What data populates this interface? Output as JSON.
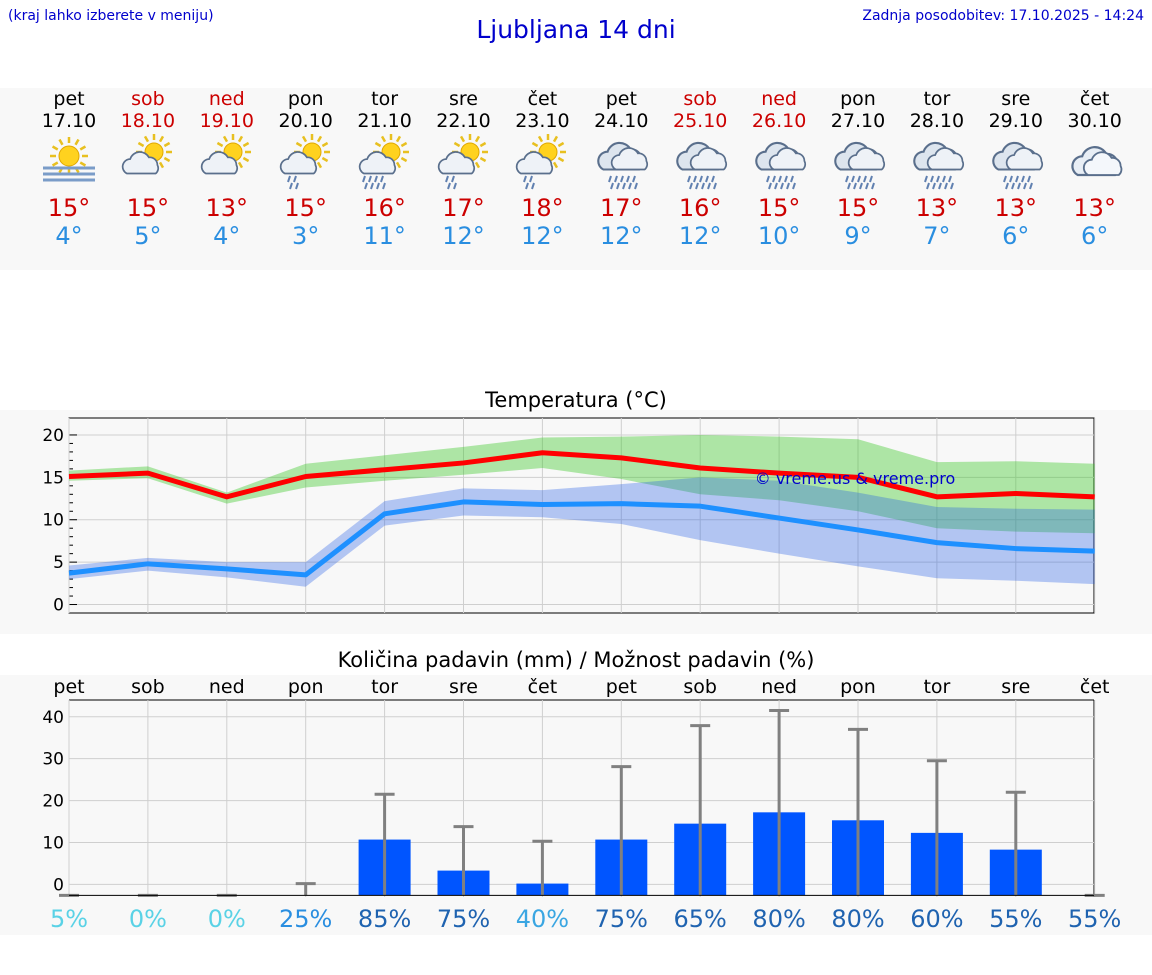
{
  "header": {
    "hint": "(kraj lahko izberete v meniju)",
    "title": "Ljubljana 14 dni",
    "updated": "Zadnja posodobitev: 17.10.2025 - 14:24"
  },
  "colors": {
    "max": "#ff0000",
    "min": "#1e90ff",
    "weekend": "#cc0000",
    "bar": "#0055ff",
    "whisker": "#808080"
  },
  "days": [
    {
      "name": "pet",
      "date": "17.10",
      "weekend": false,
      "icon": "sun-fog-icon",
      "max": "15°",
      "min": "4°"
    },
    {
      "name": "sob",
      "date": "18.10",
      "weekend": true,
      "icon": "sun-cloud-icon",
      "max": "15°",
      "min": "5°"
    },
    {
      "name": "ned",
      "date": "19.10",
      "weekend": true,
      "icon": "sun-cloud-icon",
      "max": "13°",
      "min": "4°"
    },
    {
      "name": "pon",
      "date": "20.10",
      "weekend": false,
      "icon": "sun-cloud-rain-icon",
      "max": "15°",
      "min": "3°"
    },
    {
      "name": "tor",
      "date": "21.10",
      "weekend": false,
      "icon": "sun-cloud-heavy-rain-icon",
      "max": "16°",
      "min": "11°"
    },
    {
      "name": "sre",
      "date": "22.10",
      "weekend": false,
      "icon": "sun-cloud-rain-icon",
      "max": "17°",
      "min": "12°"
    },
    {
      "name": "čet",
      "date": "23.10",
      "weekend": false,
      "icon": "sun-cloud-rain-icon",
      "max": "18°",
      "min": "12°"
    },
    {
      "name": "pet",
      "date": "24.10",
      "weekend": false,
      "icon": "cloud-rain-icon",
      "max": "17°",
      "min": "12°"
    },
    {
      "name": "sob",
      "date": "25.10",
      "weekend": true,
      "icon": "cloud-rain-icon",
      "max": "16°",
      "min": "12°"
    },
    {
      "name": "ned",
      "date": "26.10",
      "weekend": true,
      "icon": "cloud-rain-icon",
      "max": "15°",
      "min": "10°"
    },
    {
      "name": "pon",
      "date": "27.10",
      "weekend": false,
      "icon": "cloud-rain-icon",
      "max": "15°",
      "min": "9°"
    },
    {
      "name": "tor",
      "date": "28.10",
      "weekend": false,
      "icon": "cloud-rain-icon",
      "max": "13°",
      "min": "7°"
    },
    {
      "name": "sre",
      "date": "29.10",
      "weekend": false,
      "icon": "cloud-rain-icon",
      "max": "13°",
      "min": "6°"
    },
    {
      "name": "čet",
      "date": "30.10",
      "weekend": false,
      "icon": "cloud-icon",
      "max": "13°",
      "min": "6°"
    }
  ],
  "chart_data": [
    {
      "type": "line",
      "title": "Temperatura (°C)",
      "watermark": "© vreme.us & vreme.pro",
      "x": [
        "pet",
        "sob",
        "ned",
        "pon",
        "tor",
        "sre",
        "čet",
        "pet",
        "sob",
        "ned",
        "pon",
        "tor",
        "sre",
        "čet"
      ],
      "ylim": [
        -1,
        22
      ],
      "yticks": [
        0,
        5,
        10,
        15,
        20
      ],
      "grid": true,
      "series": [
        {
          "values": [
            15.1,
            15.5,
            12.7,
            15.1,
            15.9,
            16.7,
            17.9,
            17.3,
            16.1,
            15.5,
            15.0,
            12.7,
            13.1,
            12.7
          ],
          "band_low": [
            14.6,
            14.9,
            11.9,
            13.8,
            14.6,
            15.3,
            16.1,
            14.8,
            13.0,
            12.3,
            11.0,
            9.0,
            8.6,
            8.4
          ],
          "band_high": [
            15.8,
            16.3,
            13.2,
            16.6,
            17.6,
            18.6,
            19.7,
            19.8,
            20.0,
            19.8,
            19.5,
            16.8,
            16.9,
            16.6
          ]
        },
        {
          "values": [
            3.7,
            4.8,
            4.2,
            3.5,
            10.7,
            12.1,
            11.8,
            11.9,
            11.6,
            10.2,
            8.8,
            7.3,
            6.6,
            6.3
          ],
          "band_low": [
            3.0,
            4.0,
            3.2,
            2.1,
            9.3,
            10.5,
            10.3,
            9.5,
            7.6,
            6.0,
            4.5,
            3.1,
            2.8,
            2.4
          ],
          "band_high": [
            4.6,
            5.5,
            5.0,
            5.0,
            12.2,
            13.7,
            13.5,
            14.2,
            15.0,
            14.6,
            13.2,
            11.5,
            11.3,
            11.2
          ]
        }
      ]
    },
    {
      "type": "bar",
      "title": "Količina padavin (mm) / Možnost padavin (%)",
      "categories": [
        "pet",
        "sob",
        "ned",
        "pon",
        "tor",
        "sre",
        "čet",
        "pet",
        "sob",
        "ned",
        "pon",
        "tor",
        "sre",
        "čet"
      ],
      "ylim": [
        -3,
        44
      ],
      "yticks": [
        0,
        10,
        20,
        30,
        40
      ],
      "values": [
        0,
        0,
        0,
        0,
        10.7,
        3.3,
        0.2,
        10.7,
        14.5,
        17.2,
        15.3,
        12.3,
        8.3,
        0
      ],
      "error_high": [
        0,
        0,
        0,
        0.2,
        21.5,
        13.8,
        10.3,
        28.1,
        37.9,
        41.5,
        37.0,
        29.5,
        22.0,
        0
      ],
      "probability": [
        "5%",
        "0%",
        "0%",
        "25%",
        "85%",
        "75%",
        "40%",
        "75%",
        "65%",
        "80%",
        "80%",
        "60%",
        "55%",
        "55%"
      ],
      "probability_colors": [
        "#5ad2e6",
        "#5ad2e6",
        "#5ad2e6",
        "#2a8ee0",
        "#1f63b0",
        "#1f63b0",
        "#3aa6e2",
        "#1f63b0",
        "#1f63b0",
        "#1f63b0",
        "#1f63b0",
        "#1f63b0",
        "#1f63b0",
        "#1f63b0"
      ]
    }
  ]
}
